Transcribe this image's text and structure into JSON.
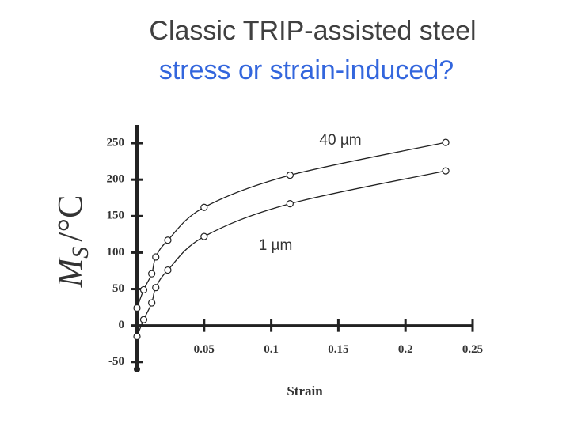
{
  "chart_data": {
    "type": "scatter-line",
    "title": "Classic TRIP-assisted steel",
    "subtitle": "stress or strain-induced?",
    "xlabel": "Strain",
    "ylabel": {
      "symbol": "M",
      "subscript": "S",
      "unit": "/°C"
    },
    "xlim": [
      0,
      0.25
    ],
    "ylim": [
      -60,
      275
    ],
    "xticks": [
      0.05,
      0.1,
      0.15,
      0.2,
      0.25
    ],
    "yticks": [
      -50,
      0,
      50,
      100,
      150,
      200,
      250
    ],
    "series": [
      {
        "name": "40 µm",
        "color": "#222222",
        "x": [
          0,
          0.005,
          0.011,
          0.014,
          0.023,
          0.05,
          0.114,
          0.23
        ],
        "values": [
          24,
          49,
          71,
          94,
          117,
          162,
          206,
          251
        ]
      },
      {
        "name": "1 µm",
        "color": "#222222",
        "x": [
          0,
          0.005,
          0.011,
          0.014,
          0.023,
          0.05,
          0.114,
          0.23
        ],
        "values": [
          -15,
          8,
          31,
          52,
          76,
          122,
          167,
          212
        ]
      }
    ]
  }
}
